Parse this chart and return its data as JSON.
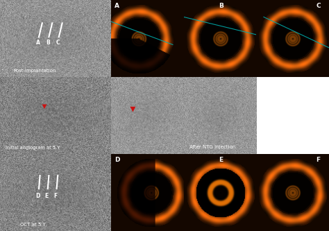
{
  "fig_width": 4.74,
  "fig_height": 3.33,
  "dpi": 100,
  "bg_color": "#ffffff",
  "gray_angio_bg": 0.55,
  "oct_bg_dark": 0.05,
  "lw": 0.3376,
  "pw": 0.2209,
  "rh": 0.3333,
  "labels_row1": [
    "A",
    "B",
    "C"
  ],
  "labels_row3": [
    "D",
    "E",
    "F"
  ],
  "text_post_impl": "Post-implantation",
  "text_initial_angio": "Initial angiogram at 5 Y",
  "text_oct_5y": "OCT at 5 Y",
  "text_after_ntg": "After NTG injection",
  "arrowhead_color": "#cc1111",
  "teal_line": "#00aaaa",
  "white_text": "#ffffff",
  "gray_bg": "#888888"
}
